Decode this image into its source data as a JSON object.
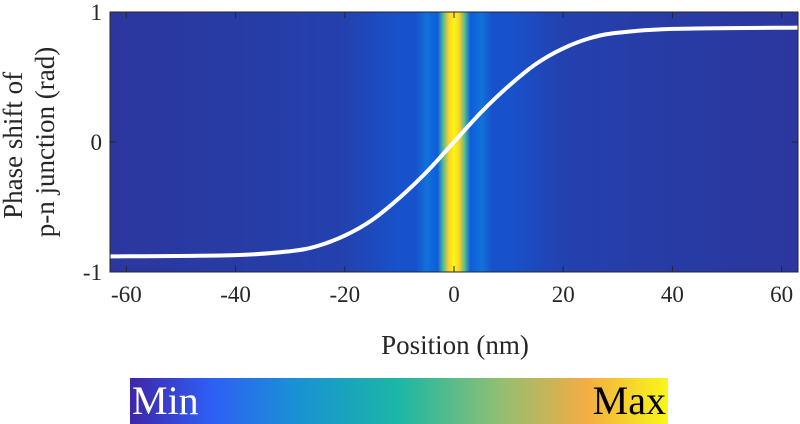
{
  "chart_data": {
    "type": "heatmap",
    "title": "",
    "xlabel": "Position (nm)",
    "ylabel_lines": [
      "Phase shift of",
      "p-n junction (rad)"
    ],
    "xlim": [
      -63,
      63
    ],
    "ylim": [
      -1,
      1
    ],
    "xticks": [
      -60,
      -40,
      -20,
      0,
      20,
      40,
      60
    ],
    "xtick_labels": [
      "-60",
      "-40",
      "-20",
      "0",
      "20",
      "40",
      "60"
    ],
    "yticks": [
      -1,
      0,
      1
    ],
    "ytick_labels": [
      "-1",
      "0",
      "1"
    ],
    "colormap": "parula",
    "colorbar": {
      "min_label": "Min",
      "max_label": "Max"
    },
    "intensity_profile": {
      "description": "vertically uniform intensity vs position",
      "x": [
        -63,
        -40,
        -20,
        -10,
        -7,
        -5,
        -4,
        -3,
        -2,
        -1,
        0,
        1,
        2,
        3,
        4,
        5,
        7,
        10,
        20,
        40,
        63
      ],
      "value": [
        0.04,
        0.05,
        0.07,
        0.12,
        0.12,
        0.25,
        0.2,
        0.15,
        0.7,
        0.95,
        1.0,
        0.95,
        0.7,
        0.15,
        0.2,
        0.25,
        0.12,
        0.12,
        0.07,
        0.05,
        0.04
      ]
    },
    "series": [
      {
        "style": "line",
        "color": "#ffffff",
        "x": [
          -63,
          -40,
          -30,
          -25,
          -20,
          -15,
          -10,
          -5,
          0,
          5,
          10,
          15,
          20,
          25,
          30,
          40,
          63
        ],
        "y": [
          -0.88,
          -0.87,
          -0.84,
          -0.8,
          -0.72,
          -0.6,
          -0.43,
          -0.23,
          0.0,
          0.23,
          0.43,
          0.6,
          0.72,
          0.8,
          0.84,
          0.87,
          0.88
        ]
      }
    ]
  }
}
